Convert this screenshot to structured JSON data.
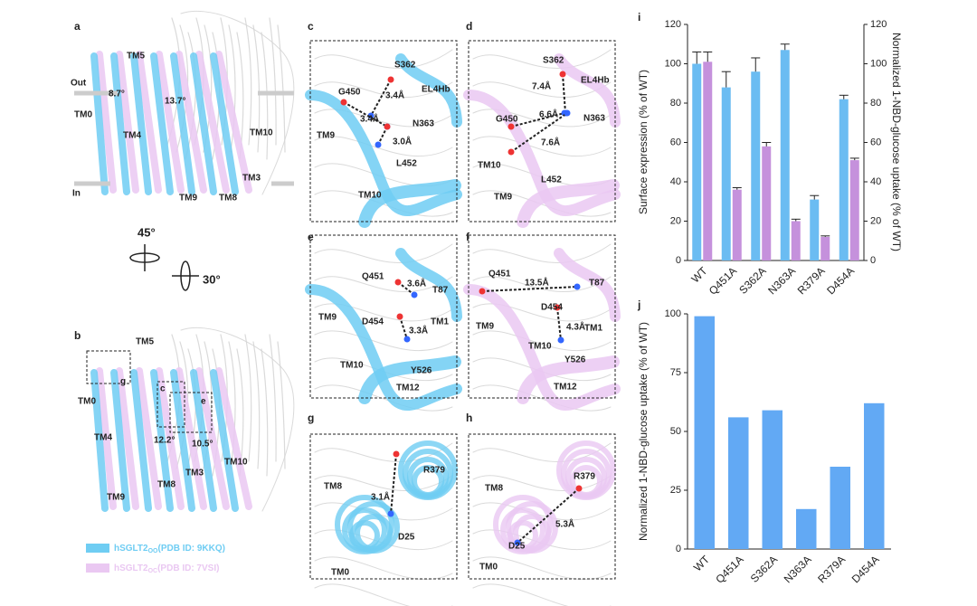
{
  "panels": {
    "a": {
      "label": "a",
      "texts": [
        "TM5",
        "Out",
        "8.7°",
        "13.7°",
        "TM0",
        "TM4",
        "TM10",
        "TM3",
        "In",
        "TM9",
        "TM8"
      ]
    },
    "b": {
      "label": "b",
      "texts": [
        "TM5",
        "g",
        "c",
        "e",
        "TM0",
        "TM4",
        "12.2°",
        "10.5°",
        "TM10",
        "TM3",
        "TM8",
        "TM9"
      ]
    },
    "c": {
      "label": "c",
      "texts": [
        "S362",
        "3.4Å",
        "G450",
        "EL4Hb",
        "3.4Å",
        "N363",
        "3.0Å",
        "TM9",
        "L452",
        "TM10"
      ]
    },
    "d": {
      "label": "d",
      "texts": [
        "S362",
        "7.4Å",
        "EL4Hb",
        "G450",
        "6.6Å",
        "N363",
        "7.6Å",
        "TM10",
        "L452",
        "TM9"
      ]
    },
    "e": {
      "label": "e",
      "texts": [
        "Q451",
        "3.6Å",
        "T87",
        "TM9",
        "D454",
        "TM1",
        "3.3Å",
        "TM10",
        "Y526",
        "TM12"
      ]
    },
    "f": {
      "label": "f",
      "texts": [
        "Q451",
        "13.5Å",
        "T87",
        "D454",
        "TM9",
        "TM1",
        "4.3Å",
        "TM10",
        "Y526",
        "TM12"
      ]
    },
    "g": {
      "label": "g",
      "texts": [
        "TM8",
        "R379",
        "3.1Å",
        "D25",
        "TM0"
      ]
    },
    "h": {
      "label": "h",
      "texts": [
        "TM8",
        "R379",
        "5.3Å",
        "D25",
        "TM0"
      ]
    },
    "i": {
      "label": "i"
    },
    "j": {
      "label": "j"
    }
  },
  "rotation": [
    "45°",
    "30°"
  ],
  "legend": [
    {
      "name": "hSGLT2",
      "sub": "OO",
      "ref": "(PDB ID: 9KKQ)",
      "color": "#6fcdf3"
    },
    {
      "name": "hSGLT2",
      "sub": "OC",
      "ref": "(PDB ID: 7VSI)",
      "color": "#eac8f2"
    }
  ],
  "chart_data": [
    {
      "type": "bar",
      "categories": [
        "WT",
        "Q451A",
        "S362A",
        "N363A",
        "R379A",
        "D454A"
      ],
      "ylabel": "Surface expression (% of WT)",
      "y2label": "Normalized 1-NBD-glucose uptake (% of WT)",
      "ylim": [
        0,
        120
      ],
      "yticks": [
        0,
        20,
        40,
        60,
        80,
        100,
        120
      ],
      "y2lim": [
        0,
        120
      ],
      "y2ticks": [
        0,
        20,
        40,
        60,
        80,
        100,
        120
      ],
      "series": [
        {
          "color": "#6bbcf2",
          "values": [
            100,
            88,
            96,
            107,
            31,
            82
          ],
          "errors": [
            6,
            8,
            7,
            3,
            2,
            2
          ]
        },
        {
          "color": "#c591dc",
          "axis": "y2",
          "values": [
            101,
            36,
            58,
            20,
            12,
            51
          ],
          "errors": [
            5,
            1,
            2,
            1,
            0.5,
            1
          ]
        }
      ]
    },
    {
      "type": "bar",
      "categories": [
        "WT",
        "Q451A",
        "S362A",
        "N363A",
        "R379A",
        "D454A"
      ],
      "ylabel": "Normalized 1-NBD-glucose uptake (% of WT)",
      "ylim": [
        0,
        100
      ],
      "yticks": [
        0,
        25,
        50,
        75,
        100
      ],
      "color": "#62a9f4",
      "values": [
        99,
        56,
        59,
        17,
        35,
        62
      ]
    }
  ]
}
